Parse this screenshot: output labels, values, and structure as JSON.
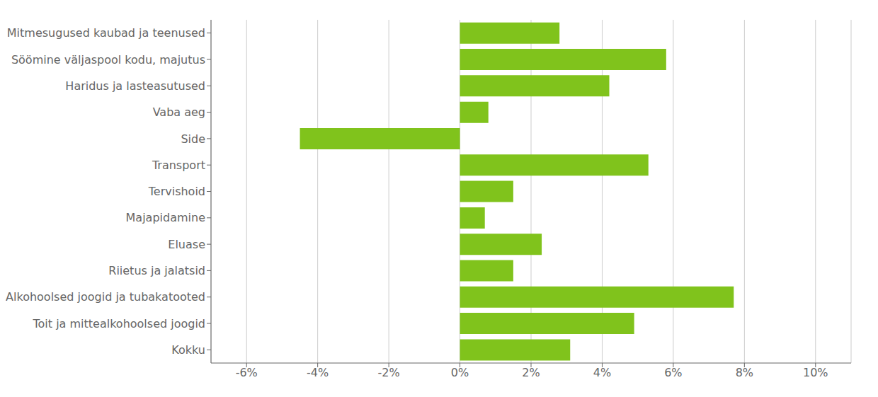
{
  "chart_data": {
    "type": "bar",
    "orientation": "horizontal",
    "categories": [
      "Mitmesugused kaubad ja teenused",
      "Söömine väljaspool kodu, majutus",
      "Haridus ja lasteasutused",
      "Vaba aeg",
      "Side",
      "Transport",
      "Tervishoid",
      "Majapidamine",
      "Eluase",
      "Riietus ja jalatsid",
      "Alkohoolsed joogid ja tubakatooted",
      "Toit ja mittealkohoolsed joogid",
      "Kokku"
    ],
    "values": [
      2.8,
      5.8,
      4.2,
      0.8,
      -4.5,
      5.3,
      1.5,
      0.7,
      2.3,
      1.5,
      7.7,
      4.9,
      3.1
    ],
    "color": "#80c31c",
    "xlim": [
      -7,
      11
    ],
    "xticks": [
      {
        "value": -6,
        "label": "-6%"
      },
      {
        "value": -4,
        "label": "-4%"
      },
      {
        "value": -2,
        "label": "-2%"
      },
      {
        "value": 0,
        "label": "0%"
      },
      {
        "value": 2,
        "label": "2%"
      },
      {
        "value": 4,
        "label": "4%"
      },
      {
        "value": 6,
        "label": "6%"
      },
      {
        "value": 8,
        "label": "8%"
      },
      {
        "value": 10,
        "label": "10%"
      }
    ],
    "grid": true
  }
}
